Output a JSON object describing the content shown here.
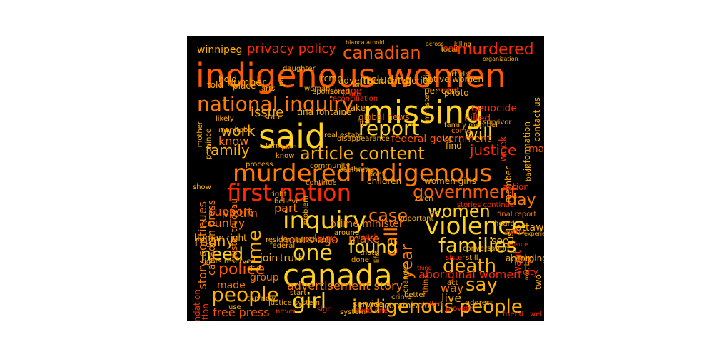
{
  "palette": {
    "yellow": "#ffd21f",
    "gold": "#ffb000",
    "orange": "#ff7a00",
    "darkorange": "#ff5a00",
    "red": "#ff2a00",
    "darkred": "#c81400"
  },
  "words": [
    "indigenous women",
    "missing",
    "said",
    "canada",
    "murdered indigenous",
    "first nation",
    "national inquiry",
    "inquiry",
    "report",
    "article content",
    "people",
    "girl",
    "indigenous people",
    "violence",
    "families",
    "women",
    "government",
    "death",
    "say",
    "canadian",
    "murdered",
    "one",
    "need",
    "family",
    "will",
    "work",
    "justice",
    "case",
    "police",
    "time",
    "day",
    "call",
    "year",
    "privacy policy",
    "winnipeg",
    "issue",
    "found",
    "many",
    "hours ago",
    "global news",
    "killed",
    "genocide",
    "support",
    "country",
    "victim",
    "part",
    "prime minister",
    "aboriginal women",
    "advertisement story",
    "way",
    "live",
    "free press",
    "want",
    "help",
    "story continues",
    "canadian press",
    "justin trudeau",
    "rcmp",
    "tina fontaine",
    "know",
    "made",
    "group",
    "join",
    "human right",
    "investigation",
    "recommendation",
    "make",
    "see",
    "must",
    "two",
    "city",
    "ottawa",
    "according",
    "federal government",
    "women girls",
    "children",
    "including",
    "number",
    "photo",
    "contact us",
    "information",
    "may",
    "native women",
    "look",
    "advertisement stories",
    "change",
    "hold",
    "told",
    "place",
    "per cent",
    "bianca arnold",
    "daughter",
    "organization",
    "take",
    "sponsored",
    "learn",
    "reconciliation",
    "survivor",
    "come",
    "family member",
    "find",
    "lot",
    "stories continue",
    "final report",
    "heard",
    "author",
    "ensure",
    "experience",
    "march",
    "member",
    "back",
    "action",
    "week",
    "community",
    "local news",
    "share",
    "dont",
    "even",
    "continue",
    "right",
    "mother",
    "likely",
    "manitoba",
    "province",
    "state",
    "term",
    "know",
    "plan",
    "process",
    "truth",
    "rights reserved",
    "residential school",
    "federal",
    "hope",
    "around",
    "important",
    "much",
    "still",
    "conversation",
    "sister",
    "friend",
    "provide",
    "service",
    "crime",
    "better",
    "commission",
    "sign",
    "system",
    "loved one",
    "never",
    "use",
    "justice system",
    "start",
    "top new",
    "show",
    "problem",
    "believe",
    "done",
    "thats",
    "address",
    "act",
    "called",
    "think",
    "well",
    "another",
    "life",
    "changes",
    "real estate",
    "disappearance",
    "first",
    "arts",
    "go",
    "local",
    "article",
    "killing",
    "across",
    "minister justin",
    "put",
    "left",
    "woman",
    "thing",
    "going",
    "include",
    "also",
    "really"
  ]
}
